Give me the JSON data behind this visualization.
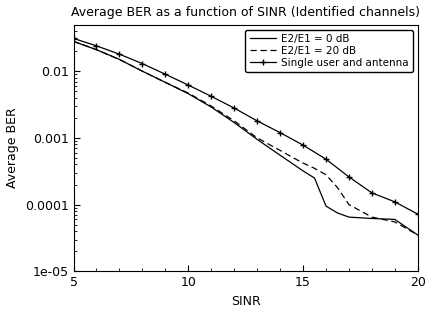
{
  "title": "Average BER as a function of SINR (Identified channels)",
  "xlabel": "SINR",
  "ylabel": "Average BER",
  "xlim": [
    5,
    20
  ],
  "ylim": [
    1e-05,
    0.05
  ],
  "xticks": [
    5,
    10,
    15,
    20
  ],
  "ytick_labels": [
    "0.01",
    "0.001",
    "0.0001",
    "1e-05"
  ],
  "ytick_vals": [
    0.01,
    0.001,
    0.0001,
    1e-05
  ],
  "legend": [
    "E2/E1 = 0 dB",
    "E2/E1 = 20 dB",
    "Single user and antenna"
  ],
  "line1_x": [
    5,
    6,
    7,
    8,
    9,
    10,
    11,
    12,
    13,
    14,
    14.5,
    15,
    15.5,
    16,
    16.5,
    17,
    18,
    19,
    20
  ],
  "line1_y": [
    0.028,
    0.021,
    0.015,
    0.01,
    0.0068,
    0.0046,
    0.0029,
    0.0017,
    0.00095,
    0.00055,
    0.00042,
    0.00032,
    0.00025,
    9.5e-05,
    7.5e-05,
    6.5e-05,
    6.2e-05,
    6e-05,
    3.5e-05
  ],
  "line2_x": [
    5,
    6,
    7,
    8,
    9,
    10,
    11,
    12,
    13,
    14,
    14.5,
    15,
    15.5,
    16,
    16.5,
    17,
    18,
    19,
    20
  ],
  "line2_y": [
    0.028,
    0.021,
    0.015,
    0.01,
    0.0068,
    0.0047,
    0.003,
    0.0018,
    0.001,
    0.00065,
    0.00052,
    0.00042,
    0.00035,
    0.00028,
    0.00018,
    0.0001,
    6.5e-05,
    5.5e-05,
    3.5e-05
  ],
  "line3_x": [
    5,
    6,
    7,
    8,
    9,
    10,
    11,
    12,
    13,
    14,
    15,
    16,
    17,
    18,
    19,
    20
  ],
  "line3_y": [
    0.031,
    0.024,
    0.018,
    0.013,
    0.009,
    0.0062,
    0.0042,
    0.0028,
    0.0018,
    0.0012,
    0.00078,
    0.00048,
    0.00026,
    0.00015,
    0.00011,
    7.2e-05
  ],
  "bg_color": "#ffffff",
  "line_color": "#000000"
}
